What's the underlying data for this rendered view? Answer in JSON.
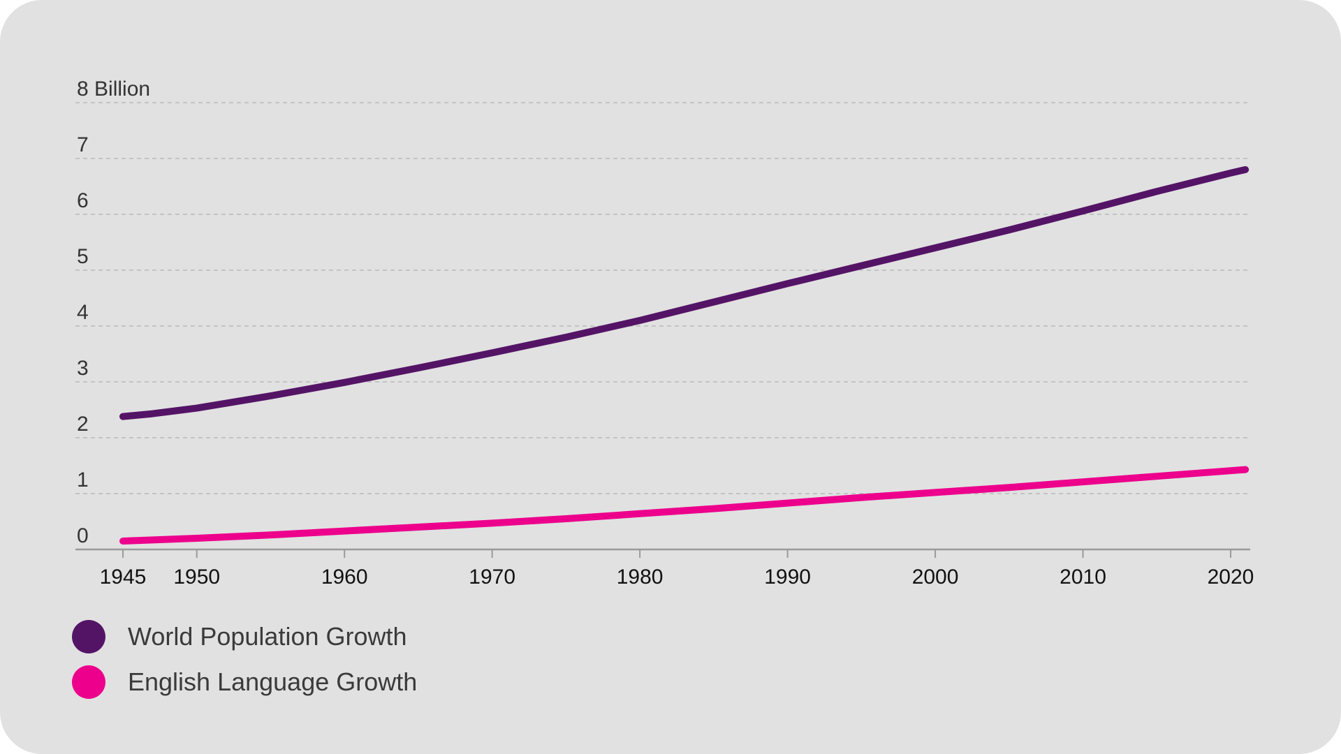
{
  "chart_data": {
    "type": "line",
    "title": "",
    "xlabel": "",
    "ylabel": "",
    "xlim": [
      1945,
      2021
    ],
    "ylim": [
      0,
      8
    ],
    "grid": true,
    "legend_position": "bottom-left",
    "y_ticks": [
      {
        "value": 0,
        "label": "0"
      },
      {
        "value": 1,
        "label": "1"
      },
      {
        "value": 2,
        "label": "2"
      },
      {
        "value": 3,
        "label": "3"
      },
      {
        "value": 4,
        "label": "4"
      },
      {
        "value": 5,
        "label": "5"
      },
      {
        "value": 6,
        "label": "6"
      },
      {
        "value": 7,
        "label": "7"
      },
      {
        "value": 8,
        "label": "8 Billion"
      }
    ],
    "x_ticks": [
      {
        "value": 1945,
        "label": "1945"
      },
      {
        "value": 1950,
        "label": "1950"
      },
      {
        "value": 1960,
        "label": "1960"
      },
      {
        "value": 1970,
        "label": "1970"
      },
      {
        "value": 1980,
        "label": "1980"
      },
      {
        "value": 1990,
        "label": "1990"
      },
      {
        "value": 2000,
        "label": "2000"
      },
      {
        "value": 2010,
        "label": "2010"
      },
      {
        "value": 2020,
        "label": "2020"
      }
    ],
    "series": [
      {
        "name": "World Population Growth",
        "color": "#541466",
        "points": [
          [
            1945,
            2.38
          ],
          [
            1947,
            2.43
          ],
          [
            1950,
            2.53
          ],
          [
            1955,
            2.75
          ],
          [
            1960,
            2.99
          ],
          [
            1965,
            3.25
          ],
          [
            1970,
            3.52
          ],
          [
            1975,
            3.8
          ],
          [
            1980,
            4.1
          ],
          [
            1985,
            4.43
          ],
          [
            1990,
            4.76
          ],
          [
            1995,
            5.08
          ],
          [
            2000,
            5.4
          ],
          [
            2005,
            5.72
          ],
          [
            2010,
            6.06
          ],
          [
            2015,
            6.41
          ],
          [
            2020,
            6.74
          ],
          [
            2021,
            6.8
          ]
        ]
      },
      {
        "name": "English Language Growth",
        "color": "#ec008c",
        "points": [
          [
            1945,
            0.15
          ],
          [
            1950,
            0.2
          ],
          [
            1955,
            0.26
          ],
          [
            1960,
            0.33
          ],
          [
            1965,
            0.4
          ],
          [
            1970,
            0.47
          ],
          [
            1975,
            0.55
          ],
          [
            1980,
            0.64
          ],
          [
            1985,
            0.73
          ],
          [
            1990,
            0.83
          ],
          [
            1995,
            0.93
          ],
          [
            2000,
            1.02
          ],
          [
            2005,
            1.11
          ],
          [
            2010,
            1.21
          ],
          [
            2015,
            1.31
          ],
          [
            2020,
            1.41
          ],
          [
            2021,
            1.43
          ]
        ]
      }
    ]
  }
}
